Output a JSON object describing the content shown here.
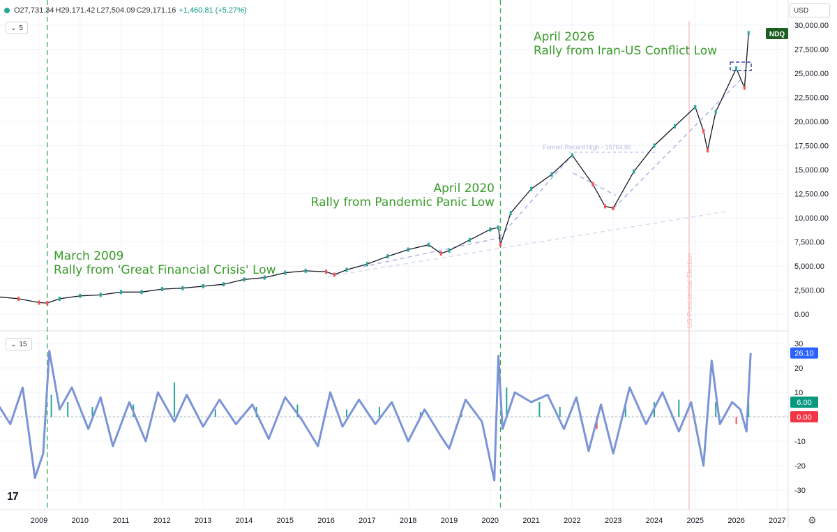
{
  "header": {
    "open": "O27,731.34",
    "high": "H29,171.42",
    "low": "L27,504.09",
    "close": "C29,171.16",
    "change": "+1,460.81 (+5.27%)",
    "main_pane_button": "5",
    "osc_pane_button": "15",
    "currency": "USD",
    "symbol_tag": "NDQ"
  },
  "chart_data": [
    {
      "type": "line",
      "subtype": "candlestick-approx",
      "series": [
        {
          "name": "NDQ",
          "x": [
            2008.0,
            2008.5,
            2009.0,
            2009.2,
            2009.5,
            2010.0,
            2010.5,
            2011.0,
            2011.5,
            2012.0,
            2012.5,
            2013.0,
            2013.5,
            2014.0,
            2014.5,
            2015.0,
            2015.5,
            2016.0,
            2016.2,
            2016.5,
            2017.0,
            2017.5,
            2018.0,
            2018.5,
            2018.8,
            2019.0,
            2019.5,
            2020.0,
            2020.2,
            2020.25,
            2020.5,
            2021.0,
            2021.5,
            2022.0,
            2022.5,
            2022.8,
            2023.0,
            2023.5,
            2024.0,
            2024.5,
            2025.0,
            2025.2,
            2025.3,
            2025.5,
            2026.0,
            2026.2,
            2026.3
          ],
          "values": [
            1800,
            1600,
            1200,
            1150,
            1600,
            1900,
            2000,
            2300,
            2300,
            2600,
            2700,
            2900,
            3100,
            3600,
            3800,
            4300,
            4500,
            4400,
            4100,
            4600,
            5200,
            6000,
            6700,
            7200,
            6300,
            6600,
            7700,
            8800,
            9000,
            7200,
            10500,
            13000,
            14500,
            16500,
            13500,
            11200,
            11000,
            14800,
            17500,
            19500,
            21500,
            19000,
            17000,
            21000,
            25500,
            23500,
            29171
          ]
        }
      ],
      "ylim": [
        -1500,
        31500
      ],
      "y_ticks": [
        "30,000.00",
        "27,500.00",
        "25,000.00",
        "22,500.00",
        "20,000.00",
        "17,500.00",
        "15,000.00",
        "12,500.00",
        "10,000.00",
        "7,500.00",
        "5,000.00",
        "2,500.00",
        "0.00"
      ],
      "x_ticks": [
        "2009",
        "2010",
        "2011",
        "2012",
        "2013",
        "2014",
        "2015",
        "2016",
        "2017",
        "2018",
        "2019",
        "2020",
        "2021",
        "2022",
        "2023",
        "2024",
        "2025",
        "2026",
        "2027"
      ],
      "annotations": [
        {
          "line1": "April 2026",
          "line2": "Rally from Iran-US Conflict Low"
        },
        {
          "line1": "April 2020",
          "line2": "Rally from Pandemic Panic Low"
        },
        {
          "line1": "March 2009",
          "line2": "Rally from 'Great Financial Crisis' Low"
        }
      ],
      "former_high_label": "Former Record High - 16764.86",
      "election_label": "US Presidential Election",
      "vertical_markers": [
        2009.2,
        2020.25,
        2024.85
      ]
    },
    {
      "type": "line",
      "series": [
        {
          "name": "oscillator",
          "x": [
            2008.0,
            2008.3,
            2008.6,
            2008.9,
            2009.1,
            2009.25,
            2009.5,
            2009.8,
            2010.2,
            2010.5,
            2010.8,
            2011.2,
            2011.6,
            2011.9,
            2012.3,
            2012.6,
            2013.0,
            2013.4,
            2013.8,
            2014.2,
            2014.6,
            2015.0,
            2015.4,
            2015.8,
            2016.1,
            2016.4,
            2016.8,
            2017.2,
            2017.6,
            2018.0,
            2018.4,
            2018.8,
            2019.0,
            2019.4,
            2019.8,
            2020.1,
            2020.2,
            2020.3,
            2020.6,
            2021.0,
            2021.4,
            2021.8,
            2022.1,
            2022.4,
            2022.7,
            2023.0,
            2023.4,
            2023.8,
            2024.2,
            2024.6,
            2024.9,
            2025.2,
            2025.4,
            2025.6,
            2025.9,
            2026.1,
            2026.25,
            2026.35
          ],
          "values": [
            5,
            -3,
            12,
            -25,
            -15,
            27,
            3,
            12,
            -5,
            8,
            -12,
            6,
            -10,
            10,
            -2,
            9,
            -4,
            7,
            -3,
            5,
            -9,
            8,
            -1,
            -12,
            10,
            -4,
            7,
            -3,
            6,
            -10,
            3,
            -8,
            -13,
            7,
            -2,
            -26,
            25,
            -5,
            10,
            6,
            9,
            -5,
            8,
            -14,
            5,
            -15,
            12,
            -3,
            10,
            -6,
            6,
            -20,
            23,
            -3,
            6,
            3,
            -6,
            26.1
          ]
        },
        {
          "name": "histogram",
          "x": [
            2009.3,
            2009.7,
            2010.3,
            2011.3,
            2012.3,
            2013.3,
            2014.3,
            2015.3,
            2016.5,
            2017.3,
            2018.3,
            2019.3,
            2020.4,
            2021.2,
            2021.7,
            2022.6,
            2023.3,
            2024.0,
            2024.6,
            2025.5,
            2026.0,
            2026.3
          ],
          "values": [
            9,
            6,
            4,
            5,
            14,
            3,
            4,
            5,
            3,
            4,
            2,
            3,
            12,
            6,
            4,
            -5,
            5,
            6,
            7,
            6,
            -3,
            6
          ]
        }
      ],
      "ylim": [
        -34,
        31
      ],
      "y_ticks": [
        "30",
        "20",
        "10",
        "0",
        "-10",
        "-20",
        "-30"
      ],
      "labels": {
        "value_osc": "26.10",
        "value_hist": "6.00",
        "value_zero": "0.00"
      }
    }
  ],
  "colors": {
    "price": "#131722",
    "up": "#26a69a",
    "down": "#ef5350",
    "annotation": "#3a9b2a",
    "oscillator": "#7b94d6",
    "marker": "#34a853",
    "election": "#f6b8b8",
    "trend": "#a9b4e6",
    "osc_tag": "#2962ff",
    "hist_tag": "#089981",
    "zero_tag": "#f23645",
    "symbol_tag": "#1b5e20"
  }
}
